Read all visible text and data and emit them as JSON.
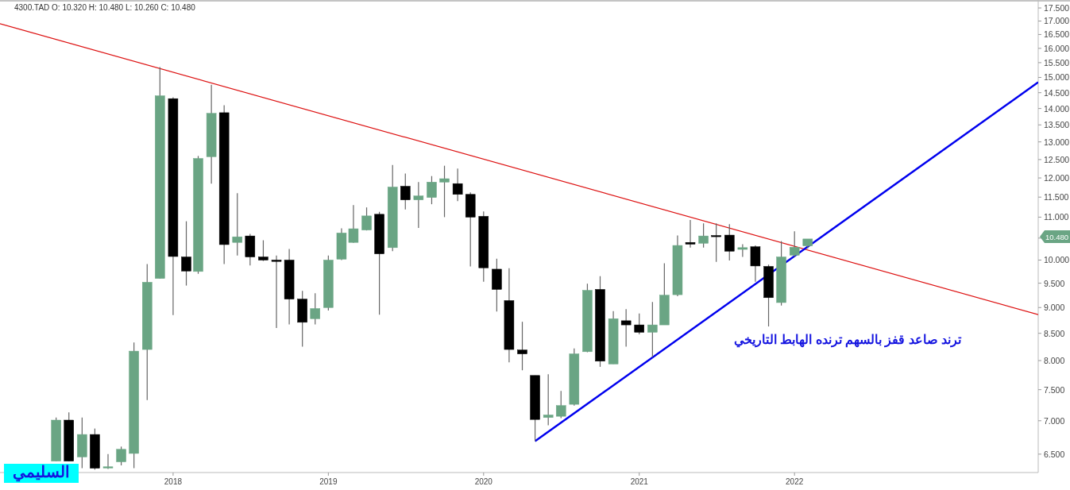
{
  "chart_data": {
    "type": "candlestick",
    "title": "4300.TAD  O: 10.320  H: 10.480  L: 10.260  C: 10.480",
    "x": [
      "2017-04",
      "2017-05",
      "2017-06",
      "2017-07",
      "2017-08",
      "2017-09",
      "2017-10",
      "2017-11",
      "2017-12",
      "2018-01",
      "2018-02",
      "2018-03",
      "2018-04",
      "2018-05",
      "2018-06",
      "2018-07",
      "2018-08",
      "2018-09",
      "2018-10",
      "2018-11",
      "2018-12",
      "2019-01",
      "2019-02",
      "2019-03",
      "2019-04",
      "2019-05",
      "2019-06",
      "2019-07",
      "2019-08",
      "2019-09",
      "2019-10",
      "2019-11",
      "2019-12",
      "2020-01",
      "2020-02",
      "2020-03",
      "2020-04",
      "2020-05",
      "2020-06",
      "2020-07",
      "2020-08",
      "2020-09",
      "2020-10",
      "2020-11",
      "2020-12",
      "2021-01",
      "2021-02",
      "2021-03",
      "2021-04",
      "2021-05",
      "2021-06",
      "2021-07",
      "2021-08",
      "2021-09",
      "2021-10",
      "2021-11",
      "2021-12",
      "2022-01",
      "2022-02"
    ],
    "ohlc": [
      [
        6.4,
        7.05,
        6.4,
        7.01
      ],
      [
        7.01,
        7.13,
        6.4,
        6.4
      ],
      [
        6.46,
        7.05,
        6.3,
        6.79
      ],
      [
        6.79,
        6.88,
        6.28,
        6.3
      ],
      [
        6.31,
        6.5,
        6.29,
        6.32
      ],
      [
        6.39,
        6.61,
        6.34,
        6.57
      ],
      [
        6.51,
        8.33,
        6.3,
        8.17
      ],
      [
        8.2,
        9.91,
        7.33,
        9.52
      ],
      [
        9.6,
        15.35,
        9.6,
        14.4
      ],
      [
        14.31,
        14.35,
        8.85,
        10.08
      ],
      [
        10.07,
        10.9,
        9.45,
        9.76
      ],
      [
        9.75,
        12.6,
        9.7,
        12.53
      ],
      [
        12.58,
        14.76,
        11.85,
        13.85
      ],
      [
        13.87,
        14.1,
        9.91,
        10.35
      ],
      [
        10.4,
        11.6,
        10.1,
        10.53
      ],
      [
        10.55,
        10.6,
        9.88,
        10.07
      ],
      [
        10.07,
        10.45,
        9.98,
        10.0
      ],
      [
        10.0,
        10.1,
        8.6,
        9.97
      ],
      [
        10.0,
        10.25,
        8.67,
        9.17
      ],
      [
        9.17,
        9.34,
        8.25,
        8.71
      ],
      [
        8.78,
        9.29,
        8.67,
        8.98
      ],
      [
        9.0,
        10.1,
        8.94,
        10.0
      ],
      [
        10.02,
        10.73,
        10.0,
        10.62
      ],
      [
        10.4,
        11.3,
        10.39,
        10.72
      ],
      [
        10.69,
        11.24,
        10.68,
        11.03
      ],
      [
        11.07,
        11.13,
        8.86,
        10.14
      ],
      [
        10.28,
        12.35,
        10.2,
        11.76
      ],
      [
        11.78,
        12.12,
        11.19,
        11.43
      ],
      [
        11.43,
        11.89,
        10.74,
        11.53
      ],
      [
        11.49,
        12.05,
        11.32,
        11.89
      ],
      [
        11.89,
        12.33,
        11.0,
        11.98
      ],
      [
        11.85,
        12.25,
        11.4,
        11.57
      ],
      [
        11.57,
        11.62,
        9.86,
        11.0
      ],
      [
        11.02,
        11.14,
        9.53,
        9.83
      ],
      [
        9.8,
        10.03,
        8.92,
        9.37
      ],
      [
        9.14,
        9.82,
        7.97,
        8.2
      ],
      [
        8.19,
        8.72,
        7.83,
        8.12
      ],
      [
        7.74,
        7.74,
        6.69,
        7.02
      ],
      [
        7.05,
        7.76,
        6.93,
        7.09
      ],
      [
        7.07,
        7.48,
        7.04,
        7.24
      ],
      [
        7.26,
        8.22,
        7.24,
        8.12
      ],
      [
        8.16,
        9.49,
        8.15,
        9.35
      ],
      [
        9.37,
        9.65,
        7.89,
        7.99
      ],
      [
        7.94,
        8.93,
        7.94,
        8.78
      ],
      [
        8.74,
        8.97,
        8.25,
        8.66
      ],
      [
        8.66,
        8.88,
        8.48,
        8.52
      ],
      [
        8.52,
        9.11,
        8.06,
        8.66
      ],
      [
        8.66,
        9.93,
        8.66,
        9.25
      ],
      [
        9.26,
        10.56,
        9.23,
        10.33
      ],
      [
        10.4,
        10.93,
        10.28,
        10.36
      ],
      [
        10.38,
        10.85,
        10.28,
        10.55
      ],
      [
        10.56,
        10.85,
        9.96,
        10.54
      ],
      [
        10.57,
        10.83,
        9.99,
        10.2
      ],
      [
        10.24,
        10.36,
        10.07,
        10.28
      ],
      [
        10.3,
        10.33,
        9.53,
        9.87
      ],
      [
        9.86,
        9.9,
        8.63,
        9.2
      ],
      [
        9.1,
        10.43,
        9.04,
        10.07
      ],
      [
        10.11,
        10.66,
        10.07,
        10.29
      ],
      [
        10.32,
        10.48,
        10.26,
        10.48
      ]
    ],
    "colors": [
      "#6aa584",
      "#000000",
      "#6aa584",
      "#000000",
      "#6aa584",
      "#6aa584",
      "#6aa584",
      "#6aa584",
      "#6aa584",
      "#000000",
      "#000000",
      "#6aa584",
      "#6aa584",
      "#000000",
      "#6aa584",
      "#000000",
      "#000000",
      "#000000",
      "#000000",
      "#000000",
      "#6aa584",
      "#6aa584",
      "#6aa584",
      "#6aa584",
      "#6aa584",
      "#000000",
      "#6aa584",
      "#000000",
      "#6aa584",
      "#6aa584",
      "#6aa584",
      "#000000",
      "#000000",
      "#000000",
      "#000000",
      "#000000",
      "#000000",
      "#000000",
      "#6aa584",
      "#6aa584",
      "#6aa584",
      "#6aa584",
      "#000000",
      "#6aa584",
      "#000000",
      "#000000",
      "#6aa584",
      "#6aa584",
      "#6aa584",
      "#000000",
      "#6aa584",
      "#000000",
      "#000000",
      "#6aa584",
      "#000000",
      "#000000",
      "#6aa584",
      "#6aa584",
      "#6aa584"
    ],
    "series": [
      {
        "type": "line",
        "color": "#dd1111",
        "x": [
          "2016-11-20",
          "2023-07-28"
        ],
        "values": [
          16.9,
          8.86
        ]
      },
      {
        "type": "line",
        "color": "#0000ee",
        "x": [
          "2020-05",
          "2023-07-28"
        ],
        "values": [
          6.69,
          14.84
        ]
      }
    ],
    "log": true,
    "ylim": [
      6.24,
      17.75
    ],
    "yticks": [
      {
        "value": 6.5,
        "label": "6.500"
      },
      {
        "value": 7,
        "label": "7.000"
      },
      {
        "value": 7.5,
        "label": "7.500"
      },
      {
        "value": 8,
        "label": "8.000"
      },
      {
        "value": 8.5,
        "label": "8.500"
      },
      {
        "value": 9,
        "label": "9.000"
      },
      {
        "value": 9.5,
        "label": "9.500"
      },
      {
        "value": 10,
        "label": "10.000"
      },
      {
        "value": 10.5,
        "label": null
      },
      {
        "value": 11,
        "label": "11.000"
      },
      {
        "value": 11.5,
        "label": "11.500"
      },
      {
        "value": 12,
        "label": "12.000"
      },
      {
        "value": 12.5,
        "label": "12.500"
      },
      {
        "value": 13,
        "label": "13.000"
      },
      {
        "value": 13.5,
        "label": "13.500"
      },
      {
        "value": 14,
        "label": "14.000"
      },
      {
        "value": 14.5,
        "label": "14.500"
      },
      {
        "value": 15,
        "label": "15.000"
      },
      {
        "value": 15.5,
        "label": "15.500"
      },
      {
        "value": 16,
        "label": "16.000"
      },
      {
        "value": 16.5,
        "label": "16.500"
      },
      {
        "value": 17,
        "label": "17.000"
      },
      {
        "value": 17.5,
        "label": "17.500"
      }
    ],
    "xlim": [
      "2016-11-20",
      "2023-07-28"
    ],
    "xticks": [
      {
        "value": "2018-01",
        "label": "2018"
      },
      {
        "value": "2019-01",
        "label": "2019"
      },
      {
        "value": "2020-01",
        "label": "2020"
      },
      {
        "value": "2021-01",
        "label": "2021"
      },
      {
        "value": "2022-01",
        "label": "2022"
      }
    ],
    "annotations": [
      "ترند صاعد قفز بالسهم ترنده الهابط التاريخي",
      "السليمي",
      "10.480"
    ]
  }
}
